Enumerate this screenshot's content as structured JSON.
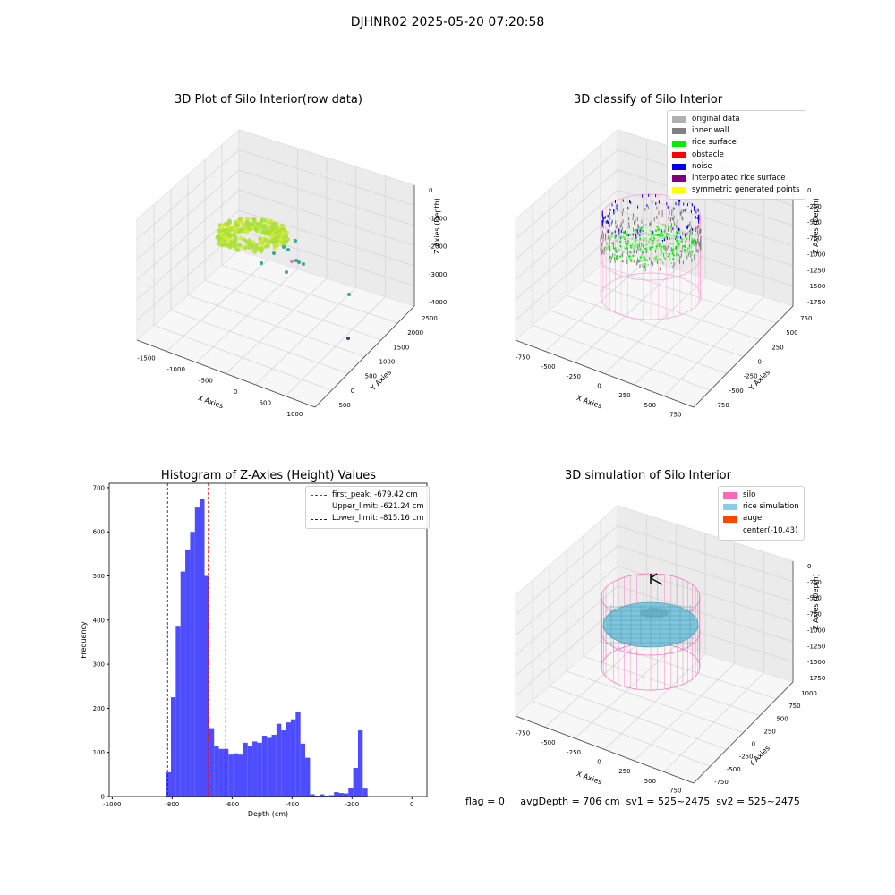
{
  "figure_title": "DJHNR02 2025-05-20 07:20:58",
  "status": {
    "flag": "flag = 0",
    "avg_depth": "avgDepth = 706 cm",
    "sv1": "sv1 = 525~2475",
    "sv2": "sv2 = 525~2475"
  },
  "chart_data": [
    {
      "type": "scatter",
      "projection": "3d",
      "title": "3D Plot of Silo Interior(row data)",
      "xlabel": "X Axies",
      "ylabel": "Y Axies",
      "zlabel": "Z Axies (Depth)",
      "x_ticks": [
        "-1500",
        "-1000",
        "-500",
        "0",
        "500",
        "1000"
      ],
      "y_ticks": [
        "-500",
        "0",
        "500",
        "1000",
        "1500",
        "2000",
        "2500"
      ],
      "z_ticks": [
        "0",
        "-1000",
        "-2000",
        "-3000",
        "-4000"
      ],
      "grid": true,
      "description_points": "ring of points near depth -2000 plus scattered outliers",
      "colors": {
        "ring": "#a8e03a",
        "outlier_teal": "#3aa88c",
        "outlier_purple": "#5a2a7a"
      }
    },
    {
      "type": "scatter",
      "projection": "3d",
      "title": "3D classify of Silo Interior",
      "xlabel": "X Axies",
      "ylabel": "Y Axies",
      "zlabel": "Z Axies (Depth)",
      "x_ticks": [
        "-750",
        "-500",
        "-250",
        "0",
        "250",
        "500",
        "750"
      ],
      "y_ticks": [
        "-750",
        "-500",
        "-250",
        "0",
        "250",
        "500",
        "750"
      ],
      "z_ticks": [
        "0",
        "-250",
        "-500",
        "-750",
        "-1000",
        "-1250",
        "-1500",
        "-1750"
      ],
      "grid": true,
      "legend": {
        "placement": "top-right",
        "items": [
          {
            "label": "original data",
            "color": "#b0b0b0"
          },
          {
            "label": "inner wall",
            "color": "#808080"
          },
          {
            "label": "rice surface",
            "color": "#00ee00"
          },
          {
            "label": "obstacle",
            "color": "#ff0000"
          },
          {
            "label": "noise",
            "color": "#0000ee"
          },
          {
            "label": "interpolated rice surface",
            "color": "#800080"
          },
          {
            "label": "symmetric generated points",
            "color": "#ffff00"
          }
        ]
      }
    },
    {
      "type": "bar",
      "title": "Histogram of Z-Axies (Height) Values",
      "xlabel": "Depth (cm)",
      "ylabel": "Frequency",
      "xlim": [
        -1010,
        50
      ],
      "ylim": [
        0,
        710
      ],
      "x_ticks": [
        -1000,
        -800,
        -600,
        -400,
        -200,
        0
      ],
      "y_ticks": [
        0,
        100,
        200,
        300,
        400,
        500,
        600,
        700
      ],
      "bin_width": 16,
      "bins_start": [
        -820,
        -804,
        -788,
        -772,
        -756,
        -740,
        -724,
        -708,
        -692,
        -676,
        -660,
        -644,
        -628,
        -612,
        -596,
        -580,
        -564,
        -548,
        -532,
        -516,
        -500,
        -484,
        -468,
        -452,
        -436,
        -420,
        -404,
        -388,
        -372,
        -356,
        -340,
        -324,
        -308,
        -292,
        -276,
        -260,
        -244,
        -228,
        -212,
        -196,
        -180,
        -164,
        -148,
        -132,
        -116,
        -100,
        -84,
        -68,
        -52,
        -36,
        -20,
        -4
      ],
      "values": [
        55,
        225,
        385,
        510,
        560,
        600,
        655,
        675,
        500,
        155,
        115,
        108,
        108,
        95,
        98,
        95,
        122,
        115,
        125,
        122,
        138,
        133,
        140,
        165,
        150,
        168,
        175,
        192,
        120,
        88,
        5,
        2,
        5,
        2,
        3,
        10,
        8,
        7,
        20,
        65,
        150,
        18,
        0,
        0,
        0,
        0,
        0,
        0,
        0,
        0,
        0,
        0
      ],
      "bar_color": "#4d4dff",
      "vlines": [
        {
          "label": "first_peak: -679.42 cm",
          "x": -679.42,
          "color": "#ff0000"
        },
        {
          "label": "Upper_limit: -621.24 cm",
          "x": -621.24,
          "color": "#0000ff"
        },
        {
          "label": "Lower_limit: -815.16 cm",
          "x": -815.16,
          "color": "#0000ff"
        }
      ],
      "legend": {
        "placement": "top-right"
      }
    },
    {
      "type": "scatter",
      "projection": "3d",
      "title": "3D simulation of Silo Interior",
      "xlabel": "X Axies",
      "ylabel": "Y Axies",
      "zlabel": "Z Axies (Depth)",
      "x_ticks": [
        "-750",
        "-500",
        "-250",
        "0",
        "250",
        "500",
        "750"
      ],
      "y_ticks": [
        "-750",
        "-500",
        "-250",
        "0",
        "250",
        "500",
        "750",
        "1000"
      ],
      "z_ticks": [
        "0",
        "-250",
        "-500",
        "-750",
        "-1000",
        "-1250",
        "-1500",
        "-1750"
      ],
      "grid": true,
      "legend": {
        "placement": "top-right",
        "items": [
          {
            "label": "silo",
            "color": "#ff69b4"
          },
          {
            "label": "rice simulation",
            "color": "#87ceeb"
          },
          {
            "label": "auger",
            "color": "#ff4500"
          },
          {
            "label": "center(-10,43)",
            "color": ""
          }
        ]
      }
    }
  ]
}
